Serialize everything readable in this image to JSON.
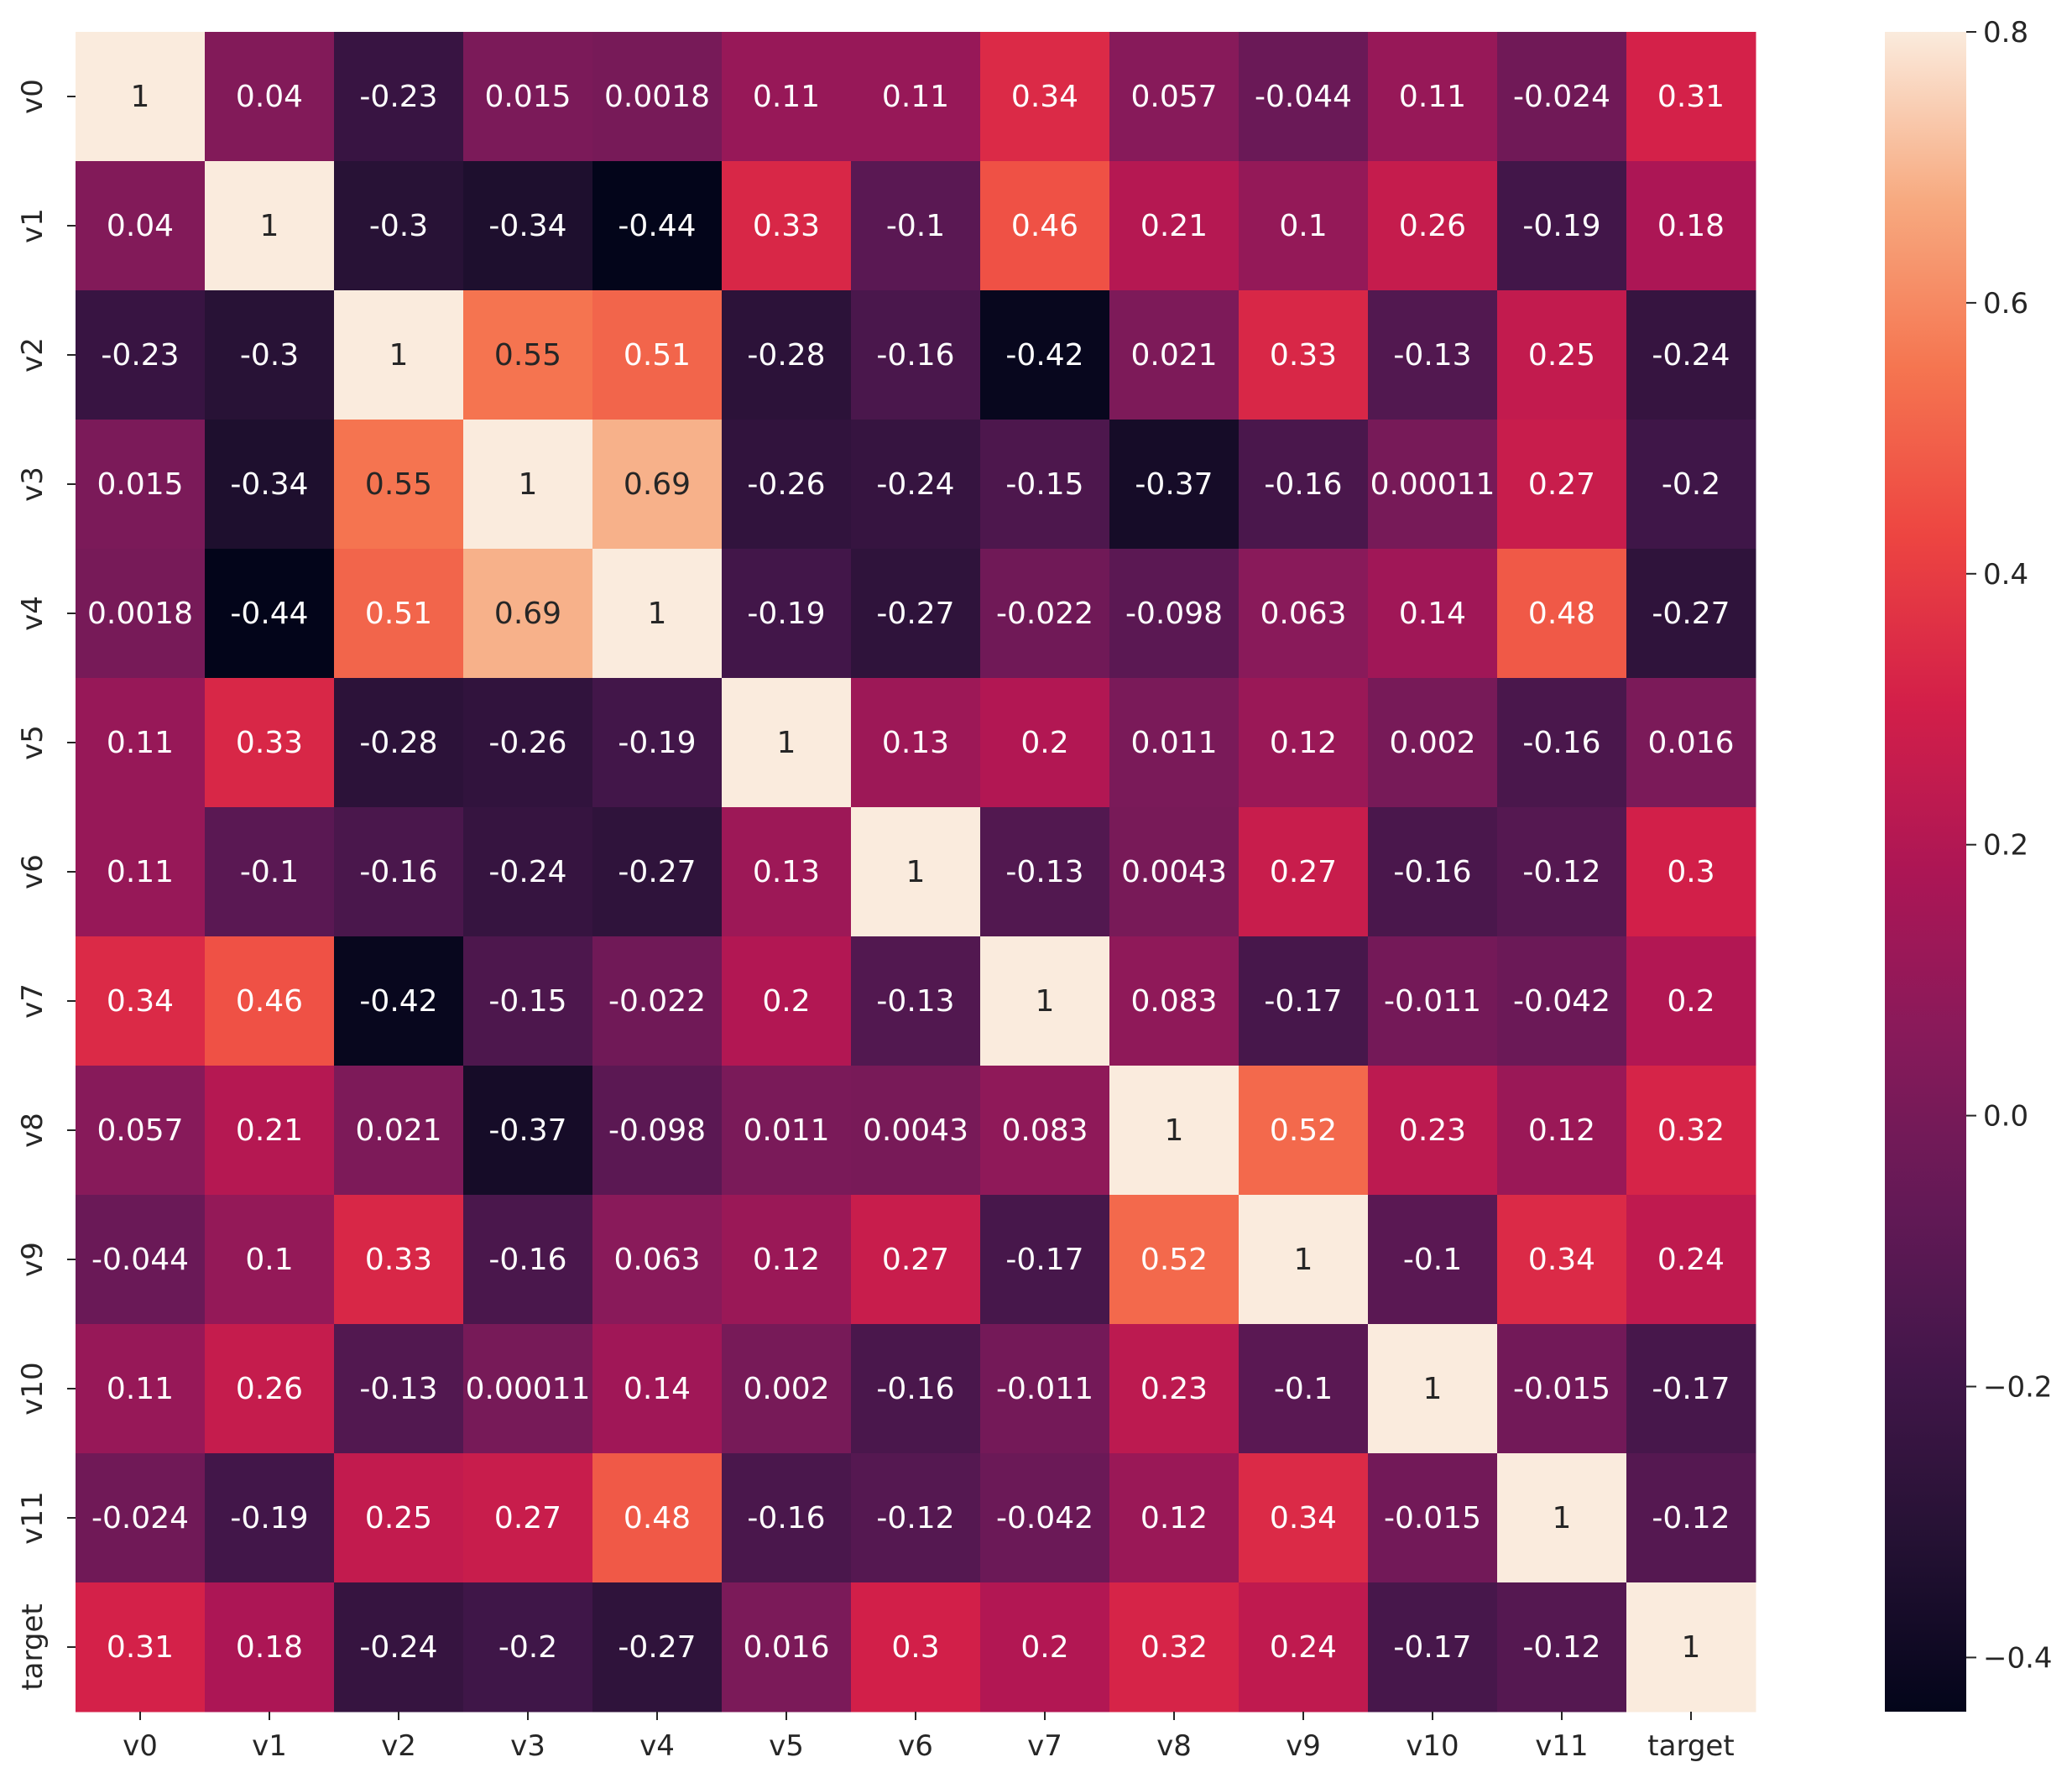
{
  "chart_data": {
    "type": "heatmap",
    "title": "",
    "xlabel": "",
    "ylabel": "",
    "x_labels": [
      "v0",
      "v1",
      "v2",
      "v3",
      "v4",
      "v5",
      "v6",
      "v7",
      "v8",
      "v9",
      "v10",
      "v11",
      "target"
    ],
    "y_labels": [
      "v0",
      "v1",
      "v2",
      "v3",
      "v4",
      "v5",
      "v6",
      "v7",
      "v8",
      "v9",
      "v10",
      "v11",
      "target"
    ],
    "values": [
      [
        1,
        0.04,
        -0.23,
        0.015,
        0.0018,
        0.11,
        0.11,
        0.34,
        0.057,
        -0.044,
        0.11,
        -0.024,
        0.31
      ],
      [
        0.04,
        1,
        -0.3,
        -0.34,
        -0.44,
        0.33,
        -0.1,
        0.46,
        0.21,
        0.1,
        0.26,
        -0.19,
        0.18
      ],
      [
        -0.23,
        -0.3,
        1,
        0.55,
        0.51,
        -0.28,
        -0.16,
        -0.42,
        0.021,
        0.33,
        -0.13,
        0.25,
        -0.24
      ],
      [
        0.015,
        -0.34,
        0.55,
        1,
        0.69,
        -0.26,
        -0.24,
        -0.15,
        -0.37,
        -0.16,
        0.00011,
        0.27,
        -0.2
      ],
      [
        0.0018,
        -0.44,
        0.51,
        0.69,
        1,
        -0.19,
        -0.27,
        -0.022,
        -0.098,
        0.063,
        0.14,
        0.48,
        -0.27
      ],
      [
        0.11,
        0.33,
        -0.28,
        -0.26,
        -0.19,
        1,
        0.13,
        0.2,
        0.011,
        0.12,
        0.002,
        -0.16,
        0.016
      ],
      [
        0.11,
        -0.1,
        -0.16,
        -0.24,
        -0.27,
        0.13,
        1,
        -0.13,
        0.0043,
        0.27,
        -0.16,
        -0.12,
        0.3
      ],
      [
        0.34,
        0.46,
        -0.42,
        -0.15,
        -0.022,
        0.2,
        -0.13,
        1,
        0.083,
        -0.17,
        -0.011,
        -0.042,
        0.2
      ],
      [
        0.057,
        0.21,
        0.021,
        -0.37,
        -0.098,
        0.011,
        0.0043,
        0.083,
        1,
        0.52,
        0.23,
        0.12,
        0.32
      ],
      [
        -0.044,
        0.1,
        0.33,
        -0.16,
        0.063,
        0.12,
        0.27,
        -0.17,
        0.52,
        1,
        -0.1,
        0.34,
        0.24
      ],
      [
        0.11,
        0.26,
        -0.13,
        0.00011,
        0.14,
        0.002,
        -0.16,
        -0.011,
        0.23,
        -0.1,
        1,
        -0.015,
        -0.17
      ],
      [
        -0.024,
        -0.19,
        0.25,
        0.27,
        0.48,
        -0.16,
        -0.12,
        -0.042,
        0.12,
        0.34,
        -0.015,
        1,
        -0.12
      ],
      [
        0.31,
        0.18,
        -0.24,
        -0.2,
        -0.27,
        0.016,
        0.3,
        0.2,
        0.32,
        0.24,
        -0.17,
        -0.12,
        1
      ]
    ],
    "color_range": [
      -0.44,
      0.8
    ],
    "colormap": "rocket",
    "colorbar_ticks": [
      0.8,
      0.6,
      0.4,
      0.2,
      0.0,
      -0.2,
      -0.4
    ],
    "colorbar_tick_labels": [
      "0.8",
      "0.6",
      "0.4",
      "0.2",
      "0.0",
      "−0.2",
      "−0.4"
    ],
    "annotate": true,
    "grid": false
  }
}
